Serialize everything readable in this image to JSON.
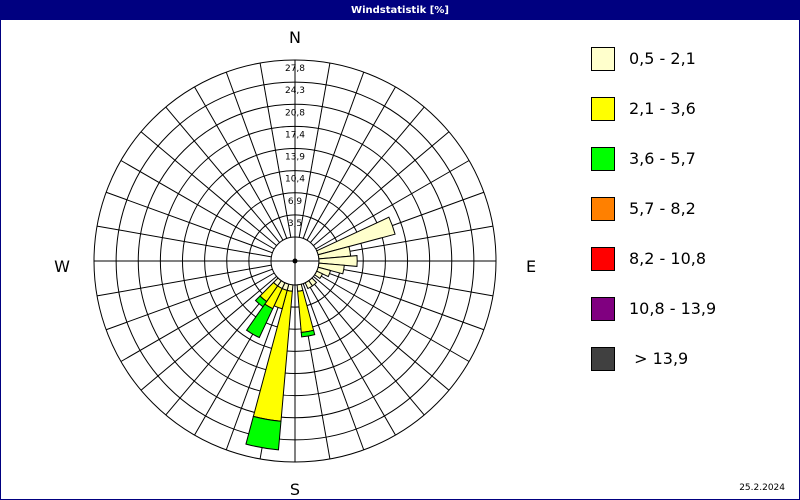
{
  "window": {
    "title": "Windstatistik [%]"
  },
  "footer": {
    "date": "25.2.2024"
  },
  "chart_data": {
    "type": "wind-rose",
    "title": "Windstatistik [%]",
    "unit": "%",
    "directions": {
      "north": "N",
      "east": "E",
      "south": "S",
      "west": "W"
    },
    "sectors": 36,
    "rmax": 27.8,
    "ring_labels": [
      "3,5",
      "6,9",
      "10,4",
      "13,9",
      "17,4",
      "20,8",
      "24,3",
      "27,8"
    ],
    "speed_classes": [
      {
        "label": "0,5 - 2,1",
        "color": "#ffffcc"
      },
      {
        "label": "2,1 - 3,6",
        "color": "#ffff00"
      },
      {
        "label": "3,6 - 5,7",
        "color": "#00ff00"
      },
      {
        "label": "5,7 - 8,2",
        "color": "#ff8000"
      },
      {
        "label": "8,2 - 10,8",
        "color": "#ff0000"
      },
      {
        "label": "10,8 - 13,9",
        "color": "#800080"
      },
      {
        "label": " > 13,9",
        "color": "#404040"
      }
    ],
    "series": [
      {
        "direction_deg": 70,
        "values": [
          12.5,
          0,
          0,
          0,
          0,
          0,
          0
        ]
      },
      {
        "direction_deg": 80,
        "values": [
          5.0,
          0,
          0,
          0,
          0,
          0,
          0
        ]
      },
      {
        "direction_deg": 90,
        "values": [
          6.0,
          0,
          0,
          0,
          0,
          0,
          0
        ]
      },
      {
        "direction_deg": 100,
        "values": [
          4.0,
          0,
          0,
          0,
          0,
          0,
          0
        ]
      },
      {
        "direction_deg": 110,
        "values": [
          2.0,
          0,
          0,
          0,
          0,
          0,
          0
        ]
      },
      {
        "direction_deg": 120,
        "values": [
          1.0,
          0,
          0,
          0,
          0,
          0,
          0
        ]
      },
      {
        "direction_deg": 140,
        "values": [
          1.0,
          0,
          0,
          0,
          0,
          0,
          0
        ]
      },
      {
        "direction_deg": 150,
        "values": [
          1.0,
          0,
          0,
          0,
          0,
          0,
          0
        ]
      },
      {
        "direction_deg": 170,
        "values": [
          1.0,
          6.5,
          0.7,
          0,
          0,
          0,
          0
        ]
      },
      {
        "direction_deg": 190,
        "values": [
          1.0,
          20.5,
          4.5,
          0,
          0,
          0,
          0
        ]
      },
      {
        "direction_deg": 200,
        "values": [
          1.0,
          3.0,
          0,
          0,
          0,
          0,
          0
        ]
      },
      {
        "direction_deg": 210,
        "values": [
          1.0,
          3.5,
          5.0,
          0,
          0,
          0,
          0
        ]
      },
      {
        "direction_deg": 220,
        "values": [
          1.0,
          3.0,
          1.0,
          0,
          0,
          0,
          0
        ]
      }
    ],
    "grid": true,
    "legend_position": "right"
  }
}
